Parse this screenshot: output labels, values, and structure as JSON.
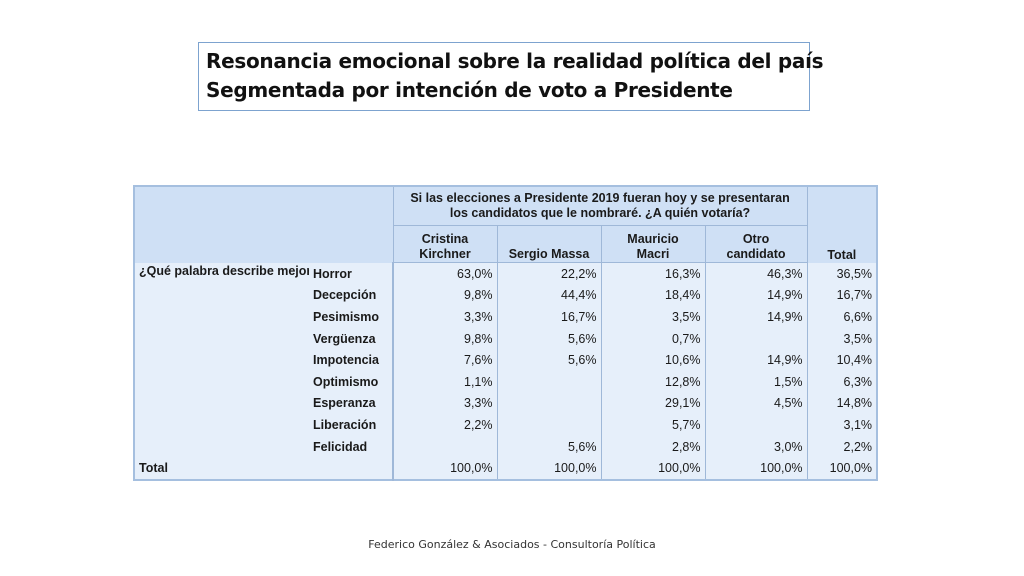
{
  "title": {
    "line1": "Resonancia emocional sobre la realidad política del país",
    "line2": "Segmentada por intención de voto a Presidente"
  },
  "table": {
    "super_header_line1": "Si las elecciones a Presidente 2019 fueran hoy y se presentaran",
    "super_header_line2": "los candidatos que le nombraré. ¿A quién votaría?",
    "columns": [
      {
        "line1": "Cristina",
        "line2": "Kirchner"
      },
      {
        "line1": "",
        "line2": "Sergio Massa"
      },
      {
        "line1": "Mauricio",
        "line2": "Macri"
      },
      {
        "line1": "Otro",
        "line2": "candidato"
      }
    ],
    "total_header": "Total",
    "question": "¿Qué palabra describe mejor su sentimiento sobre la realidad política que vive al país?",
    "rows": [
      {
        "label": "Horror",
        "values": [
          "63,0%",
          "22,2%",
          "16,3%",
          "46,3%",
          "36,5%"
        ]
      },
      {
        "label": "Decepción",
        "values": [
          "9,8%",
          "44,4%",
          "18,4%",
          "14,9%",
          "16,7%"
        ]
      },
      {
        "label": "Pesimismo",
        "values": [
          "3,3%",
          "16,7%",
          "3,5%",
          "14,9%",
          "6,6%"
        ]
      },
      {
        "label": "Vergüenza",
        "values": [
          "9,8%",
          "5,6%",
          "0,7%",
          "",
          "3,5%"
        ]
      },
      {
        "label": "Impotencia",
        "values": [
          "7,6%",
          "5,6%",
          "10,6%",
          "14,9%",
          "10,4%"
        ]
      },
      {
        "label": "Optimismo",
        "values": [
          "1,1%",
          "",
          "12,8%",
          "1,5%",
          "6,3%"
        ]
      },
      {
        "label": "Esperanza",
        "values": [
          "3,3%",
          "",
          "29,1%",
          "4,5%",
          "14,8%"
        ]
      },
      {
        "label": "Liberación",
        "values": [
          "2,2%",
          "",
          "5,7%",
          "",
          "3,1%"
        ]
      },
      {
        "label": "Felicidad",
        "values": [
          "",
          "5,6%",
          "2,8%",
          "3,0%",
          "2,2%"
        ]
      }
    ],
    "total_row": {
      "label": "Total",
      "values": [
        "100,0%",
        "100,0%",
        "100,0%",
        "100,0%",
        "100,0%"
      ]
    }
  },
  "footer": "Federico González & Asociados - Consultoría Política"
}
